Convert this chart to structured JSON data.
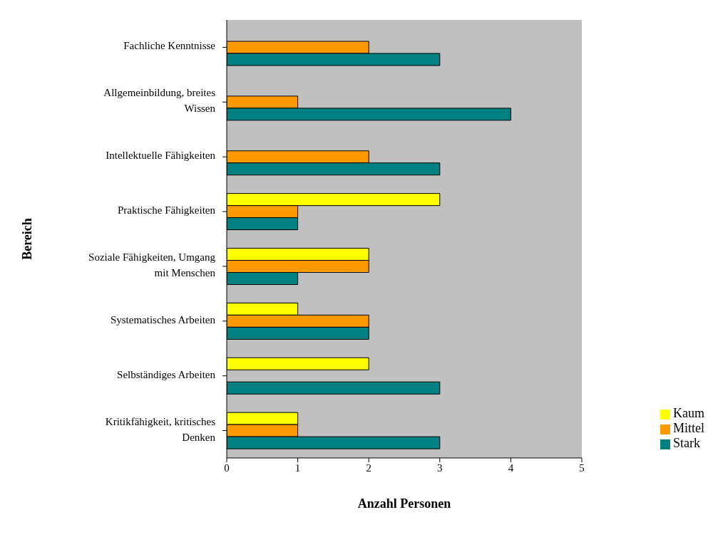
{
  "chart_data": {
    "type": "bar",
    "orientation": "horizontal",
    "xlabel": "Anzahl Personen",
    "ylabel": "Bereich",
    "categories": [
      "Fachliche Kenntnisse",
      "Allgemeinbildung, breites Wissen",
      "Intellektuelle Fähigkeiten",
      "Praktische Fähigkeiten",
      "Soziale Fähigkeiten, Umgang mit Menschen",
      "Systematisches Arbeiten",
      "Selbständiges Arbeiten",
      "Kritikfähigkeit, kritisches Denken"
    ],
    "series": [
      {
        "name": "Kaum",
        "color": "#ffff00",
        "values": [
          0,
          0,
          0,
          3,
          2,
          1,
          2,
          1
        ]
      },
      {
        "name": "Mittel",
        "color": "#ff9900",
        "values": [
          2,
          1,
          2,
          1,
          2,
          2,
          0,
          1
        ]
      },
      {
        "name": "Stark",
        "color": "#008080",
        "values": [
          3,
          4,
          3,
          1,
          1,
          2,
          3,
          3
        ]
      }
    ],
    "xlim": [
      0,
      5
    ],
    "xticks": [
      0,
      1,
      2,
      3,
      4,
      5
    ],
    "legend": "bottom right",
    "grid": false
  }
}
